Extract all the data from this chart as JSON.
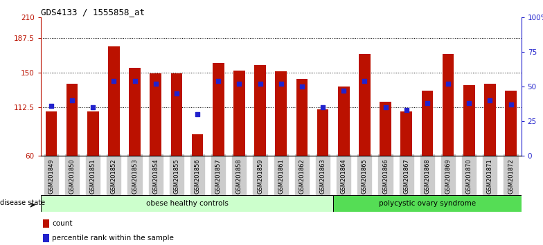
{
  "title": "GDS4133 / 1555858_at",
  "samples": [
    "GSM201849",
    "GSM201850",
    "GSM201851",
    "GSM201852",
    "GSM201853",
    "GSM201854",
    "GSM201855",
    "GSM201856",
    "GSM201857",
    "GSM201858",
    "GSM201859",
    "GSM201861",
    "GSM201862",
    "GSM201863",
    "GSM201864",
    "GSM201865",
    "GSM201866",
    "GSM201867",
    "GSM201868",
    "GSM201869",
    "GSM201870",
    "GSM201871",
    "GSM201872"
  ],
  "counts": [
    108,
    138,
    108,
    178,
    155,
    149,
    149,
    83,
    160,
    152,
    158,
    151,
    143,
    110,
    135,
    170,
    118,
    108,
    130,
    170,
    136,
    138,
    130
  ],
  "percentiles": [
    36,
    40,
    35,
    54,
    54,
    52,
    45,
    30,
    54,
    52,
    52,
    52,
    50,
    35,
    47,
    54,
    35,
    33,
    38,
    52,
    38,
    40,
    37
  ],
  "group1_label": "obese healthy controls",
  "group2_label": "polycystic ovary syndrome",
  "group1_count": 14,
  "group2_count": 9,
  "left_ylim": [
    60,
    210
  ],
  "left_yticks": [
    60,
    112.5,
    150,
    187.5,
    210
  ],
  "right_ylim": [
    0,
    100
  ],
  "right_yticks": [
    0,
    25,
    50,
    75,
    100
  ],
  "right_yticklabels": [
    "0",
    "25",
    "50",
    "75",
    "100%"
  ],
  "bar_color": "#BB1100",
  "dot_color": "#2222CC",
  "group1_bg": "#CCFFCC",
  "group2_bg": "#55DD55",
  "tick_bg": "#CCCCCC",
  "disease_state_label": "disease state",
  "legend_count_label": "count",
  "legend_pct_label": "percentile rank within the sample",
  "bar_width": 0.55
}
